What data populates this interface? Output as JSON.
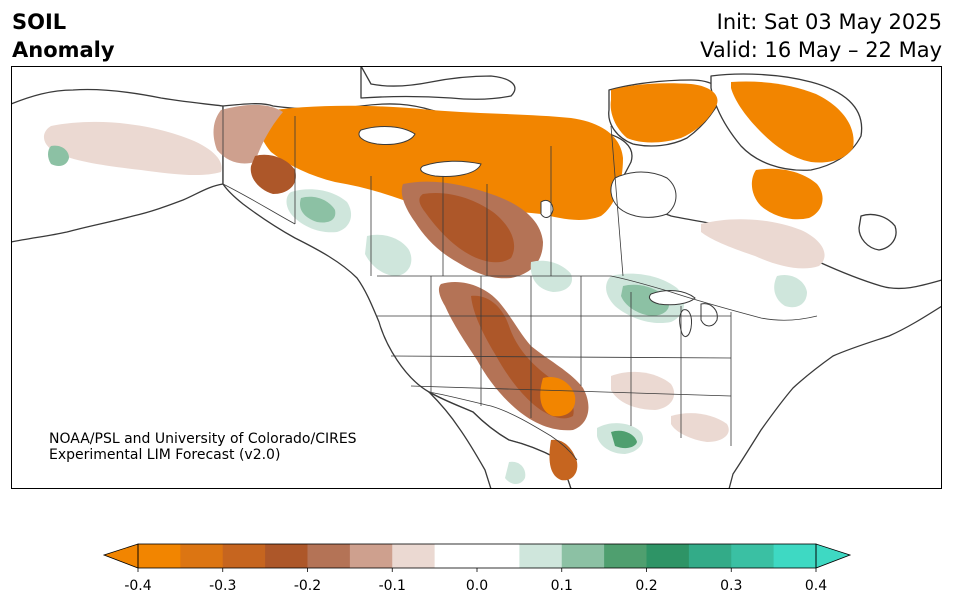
{
  "header": {
    "variable": "SOIL",
    "anomaly": "Anomaly",
    "init": "Init: Sat 03 May 2025",
    "valid": "Valid: 16 May – 22 May"
  },
  "credit": {
    "line1": "NOAA/PSL and University of Colorado/CIRES",
    "line2": "Experimental LIM Forecast (v2.0)"
  },
  "colorbar": {
    "min": -0.4,
    "max": 0.4,
    "ticks": [
      "-0.4",
      "-0.3",
      "-0.2",
      "-0.1",
      "0.0",
      "0.1",
      "0.2",
      "0.3",
      "0.4"
    ],
    "bins": [
      {
        "from": -0.4,
        "to": -0.35,
        "color": "#f28500"
      },
      {
        "from": -0.35,
        "to": -0.3,
        "color": "#dc7512"
      },
      {
        "from": -0.3,
        "to": -0.25,
        "color": "#c6651f"
      },
      {
        "from": -0.25,
        "to": -0.2,
        "color": "#ad5729"
      },
      {
        "from": -0.2,
        "to": -0.15,
        "color": "#b47356"
      },
      {
        "from": -0.15,
        "to": -0.1,
        "color": "#cea08e"
      },
      {
        "from": -0.1,
        "to": -0.05,
        "color": "#ebd9d2"
      },
      {
        "from": -0.05,
        "to": 0.05,
        "color": "#ffffff"
      },
      {
        "from": 0.05,
        "to": 0.1,
        "color": "#cfe6dc"
      },
      {
        "from": 0.1,
        "to": 0.15,
        "color": "#8cc1a4"
      },
      {
        "from": 0.15,
        "to": 0.2,
        "color": "#4f9f6f"
      },
      {
        "from": 0.2,
        "to": 0.25,
        "color": "#2e9466"
      },
      {
        "from": 0.25,
        "to": 0.3,
        "color": "#33ab88"
      },
      {
        "from": 0.3,
        "to": 0.35,
        "color": "#3ac0a3"
      },
      {
        "from": 0.35,
        "to": 0.4,
        "color": "#3ed9c3"
      }
    ],
    "under_color": "#f28500",
    "over_color": "#3ed9c3"
  },
  "colors": {
    "coast": "#3a3a3a",
    "border": "#3a3a3a",
    "ocean": "#ffffff"
  }
}
